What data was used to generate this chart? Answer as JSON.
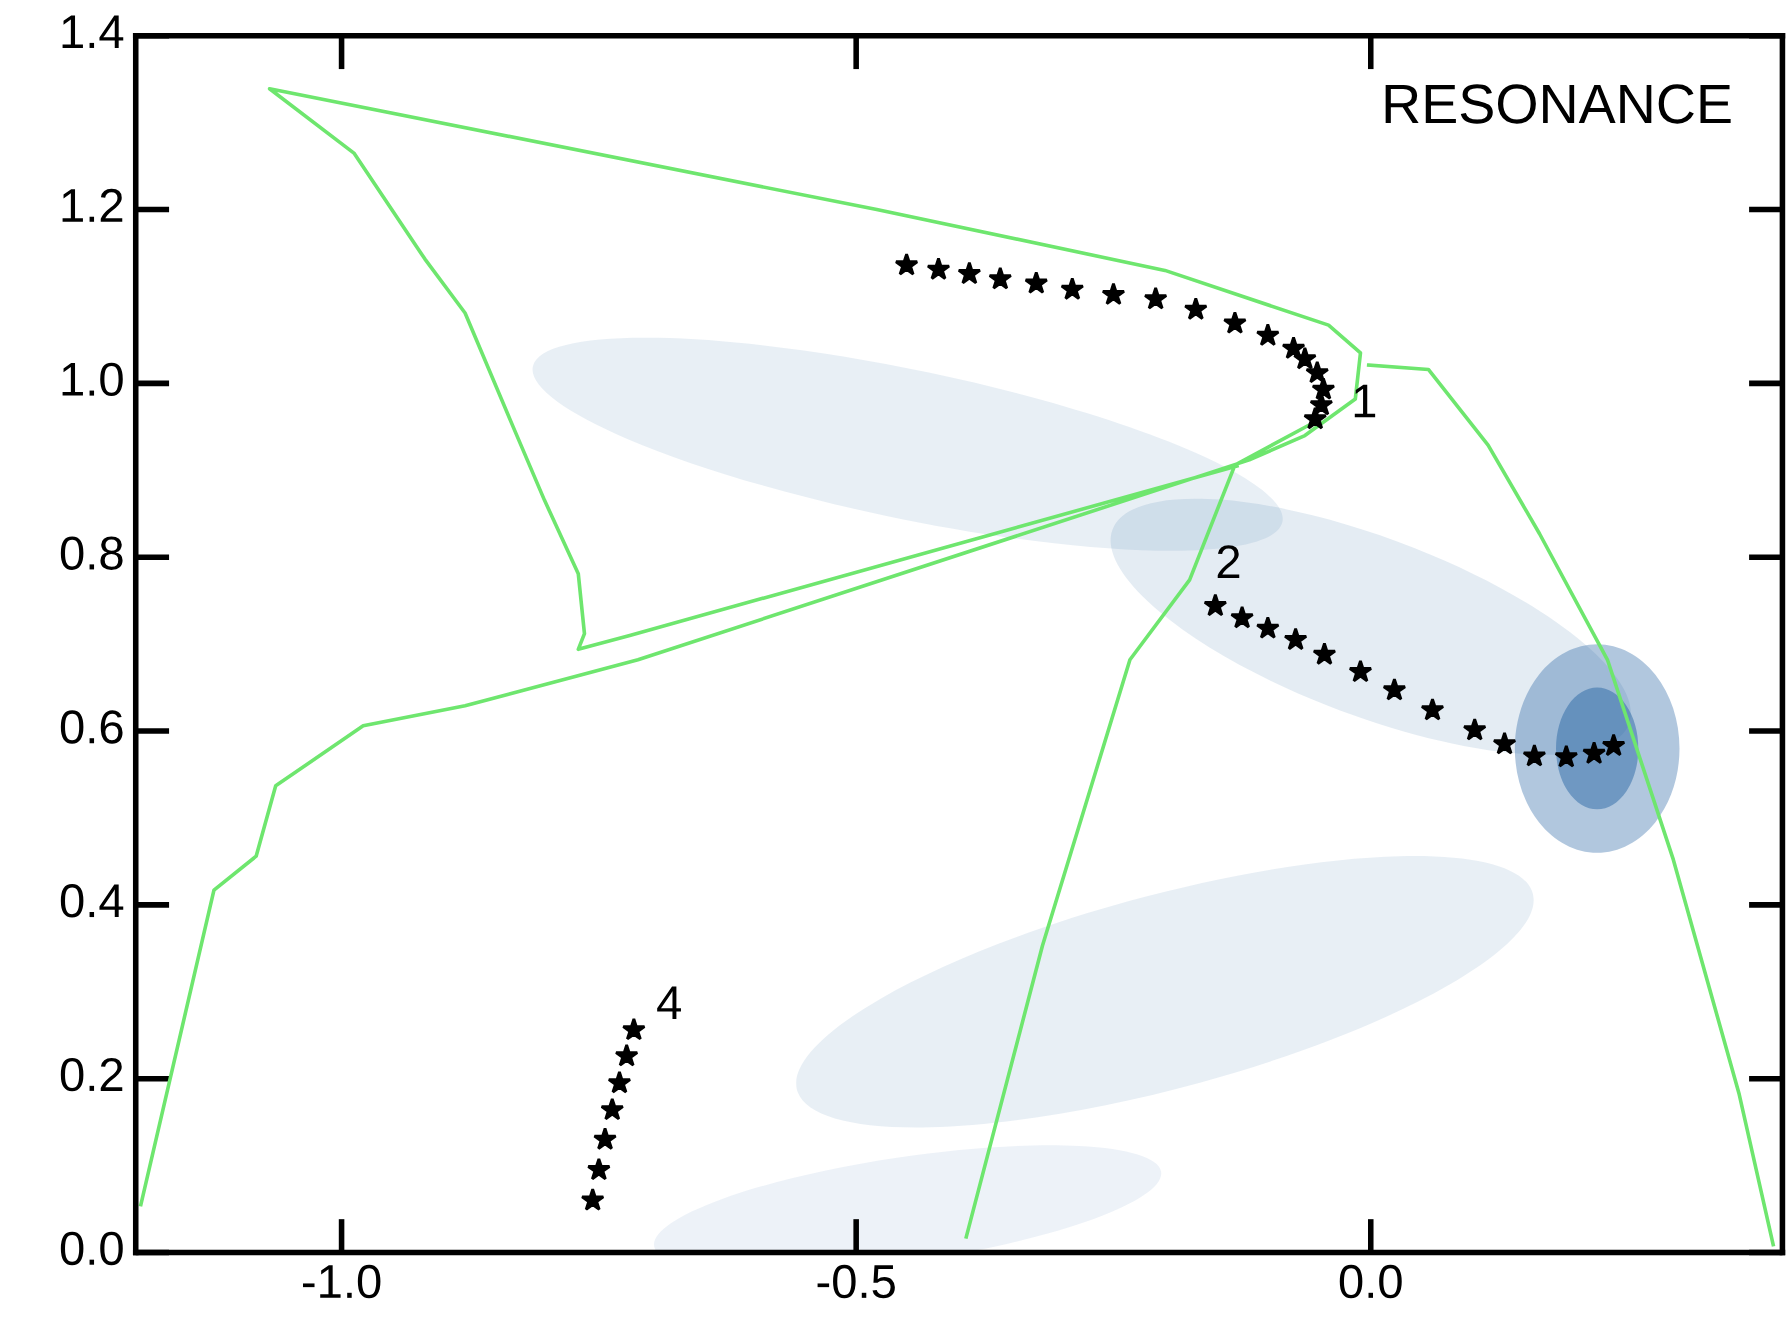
{
  "chart_data": {
    "type": "line",
    "xlim": [
      -1.2,
      0.4
    ],
    "ylim": [
      0.0,
      1.4
    ],
    "xticks": [
      {
        "value": -1.0,
        "label": "-1.0"
      },
      -0.5,
      {
        "value": 0.0,
        "label": "0.0"
      }
    ],
    "yticks": [
      {
        "value": 0.0,
        "label": "0.0"
      },
      0.2,
      0.4,
      0.6,
      0.8,
      {
        "value": 1.0,
        "label": "1.0"
      },
      1.2,
      1.4
    ],
    "grid": false,
    "legend": false,
    "series": [
      {
        "color": "#6ee66e",
        "x": [
          -1.195,
          -1.124,
          -1.083,
          -1.064,
          -0.979,
          -0.88,
          -0.712,
          -0.118,
          -0.064,
          -0.015,
          -0.01,
          -0.041,
          -0.2,
          -0.48,
          -1.07,
          -0.988,
          -0.919,
          -0.88,
          -0.834,
          -0.803,
          -0.77,
          -0.764,
          -0.77,
          -0.72,
          -0.13,
          null,
          -0.002,
          0.056,
          0.114,
          0.164,
          0.23,
          0.294,
          0.358,
          0.391,
          null,
          -0.393,
          -0.319,
          -0.234,
          -0.176,
          -0.132,
          -0.06
        ],
        "values": [
          0.055,
          0.417,
          0.456,
          0.537,
          0.606,
          0.629,
          0.682,
          0.912,
          0.94,
          0.982,
          1.035,
          1.067,
          1.13,
          1.2,
          1.339,
          1.265,
          1.143,
          1.081,
          0.952,
          0.866,
          0.781,
          0.712,
          0.694,
          0.71,
          0.905,
          null,
          1.021,
          1.016,
          0.929,
          0.827,
          0.682,
          0.452,
          0.182,
          0.009,
          null,
          0.018,
          0.353,
          0.682,
          0.774,
          0.906,
          0.952
        ]
      },
      {
        "type": "scatter",
        "color": "#000000",
        "marker": "star",
        "x": [
          -0.451,
          -0.42,
          -0.39,
          -0.36,
          -0.325,
          -0.29,
          -0.25,
          -0.209,
          -0.17,
          -0.132,
          -0.1,
          -0.075,
          -0.064,
          -0.052,
          -0.046,
          -0.048,
          -0.054,
          -0.151,
          -0.125,
          -0.1,
          -0.073,
          -0.045,
          -0.01,
          0.023,
          0.06,
          0.101,
          0.13,
          0.159,
          0.19,
          0.217,
          0.236,
          -0.756,
          -0.75,
          -0.744,
          -0.737,
          -0.73,
          -0.723,
          -0.716
        ],
        "values": [
          1.136,
          1.131,
          1.126,
          1.12,
          1.115,
          1.108,
          1.102,
          1.097,
          1.085,
          1.069,
          1.055,
          1.04,
          1.028,
          1.012,
          0.993,
          0.975,
          0.959,
          0.744,
          0.73,
          0.718,
          0.705,
          0.688,
          0.668,
          0.647,
          0.624,
          0.601,
          0.585,
          0.571,
          0.57,
          0.574,
          0.583,
          0.06,
          0.095,
          0.13,
          0.164,
          0.195,
          0.226,
          0.256
        ]
      }
    ],
    "annotations": [
      "RESONANCE",
      {
        "text": "1",
        "x": -0.046,
        "y": 0.993
      },
      {
        "text": "2",
        "x": -0.151,
        "y": 0.744
      },
      {
        "text": "4",
        "x": -0.716,
        "y": 0.256
      }
    ]
  }
}
